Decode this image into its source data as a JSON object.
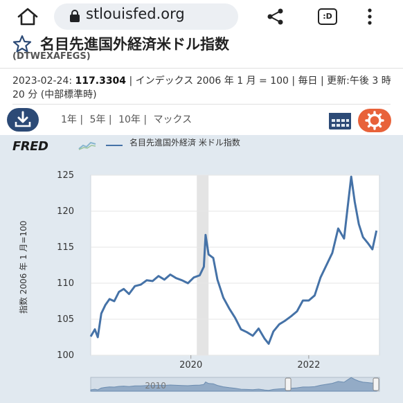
{
  "browser": {
    "url": "stlouisfed.org",
    "tab_label": ":D"
  },
  "header": {
    "title": "名目先進国外経済米ドル指数",
    "series_id": "(DTWEXAFEGS)"
  },
  "meta": {
    "date": "2023-02-24:",
    "value": "117.3304",
    "rest": " | インデックス 2006 年 1 月 = 100 | 毎日 | 更新:午後 3 時 20 分 (中部標準時)"
  },
  "toolbar": {
    "ranges": [
      "1年 |",
      "5年 |",
      "10年 |",
      "マックス"
    ]
  },
  "chart_panel": {
    "logo": "FRED",
    "legend_label": "名目先進国外経済 米ドル指数"
  },
  "colors": {
    "series": "#4572a7",
    "accent_orange": "#e8623a",
    "nav_blue": "#2c4a76",
    "panel_bg": "#e1e9f0"
  },
  "chart_data": {
    "type": "line",
    "ylabel": "指数 2006 年 1 月=100",
    "ylim": [
      100,
      125
    ],
    "yticks": [
      "100",
      "105",
      "110",
      "115",
      "120",
      "125"
    ],
    "xlim": [
      2018.3,
      2023.2
    ],
    "xticks": [
      {
        "x": 2020,
        "label": "2020"
      },
      {
        "x": 2022,
        "label": "2022"
      }
    ],
    "recession": [
      2020.1,
      2020.3
    ],
    "series": [
      {
        "x": [
          2018.3,
          2018.37,
          2018.42,
          2018.48,
          2018.55,
          2018.62,
          2018.7,
          2018.78,
          2018.86,
          2018.95,
          2019.05,
          2019.15,
          2019.25,
          2019.35,
          2019.45,
          2019.55,
          2019.65,
          2019.75,
          2019.85,
          2019.95,
          2020.05,
          2020.15,
          2020.22,
          2020.25,
          2020.3,
          2020.38,
          2020.45,
          2020.55,
          2020.65,
          2020.75,
          2020.85,
          2020.95,
          2021.05,
          2021.15,
          2021.25,
          2021.32,
          2021.4,
          2021.5,
          2021.6,
          2021.7,
          2021.8,
          2021.9,
          2022.0,
          2022.1,
          2022.2,
          2022.3,
          2022.4,
          2022.5,
          2022.6,
          2022.66,
          2022.72,
          2022.78,
          2022.85,
          2022.92,
          2023.0,
          2023.08,
          2023.15
        ],
        "y": [
          102.6,
          103.6,
          102.5,
          105.8,
          107.0,
          107.8,
          107.5,
          108.8,
          109.2,
          108.5,
          109.6,
          109.8,
          110.4,
          110.3,
          111.0,
          110.5,
          111.2,
          110.7,
          110.4,
          110.0,
          110.8,
          111.1,
          112.3,
          116.7,
          114.0,
          113.5,
          110.5,
          108.0,
          106.5,
          105.2,
          103.6,
          103.2,
          102.7,
          103.7,
          102.3,
          101.6,
          103.3,
          104.3,
          104.8,
          105.4,
          106.1,
          107.6,
          107.6,
          108.3,
          110.8,
          112.5,
          114.2,
          117.6,
          116.2,
          120.5,
          124.8,
          121.3,
          118.2,
          116.4,
          115.6,
          114.7,
          117.3
        ]
      }
    ],
    "navigator_label": "2010"
  }
}
